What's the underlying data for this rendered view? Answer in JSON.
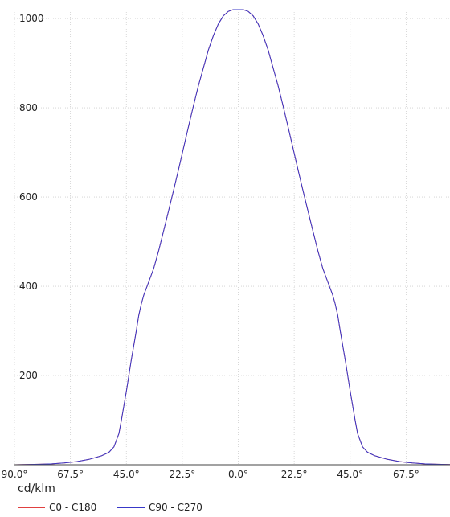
{
  "chart_data": {
    "type": "line",
    "unit_label": "cd/klm",
    "x_tick_labels": [
      "90.0°",
      "67.5°",
      "45.0°",
      "22.5°",
      "0.0°",
      "22.5°",
      "45.0°",
      "67.5°"
    ],
    "y_ticks": [
      200,
      400,
      600,
      800,
      1000
    ],
    "ylim": [
      0,
      1020
    ],
    "xlim": [
      -90,
      90
    ],
    "grid": true,
    "legend_position": "bottom-left",
    "colors": {
      "c0": "#e04040",
      "c90": "#3838c8"
    },
    "series": [
      {
        "name": "C0 - C180",
        "color": "#e04040",
        "x": [
          -90,
          -80,
          -75,
          -70,
          -65,
          -60,
          -55,
          -52,
          -50,
          -48,
          -47,
          -45,
          -43,
          -41,
          -40,
          -39,
          -38,
          -36,
          -34,
          -32,
          -30,
          -28,
          -26,
          -24,
          -22,
          -20,
          -18,
          -16,
          -14,
          -12,
          -10,
          -8,
          -6,
          -4,
          -2,
          0,
          2,
          4,
          6,
          8,
          10,
          12,
          14,
          16,
          18,
          20,
          22,
          24,
          26,
          28,
          30,
          32,
          34,
          36,
          38,
          39,
          40,
          41,
          43,
          45,
          47,
          48,
          50,
          52,
          55,
          60,
          65,
          70,
          75,
          80,
          90
        ],
        "y": [
          0,
          1,
          2,
          4,
          7,
          12,
          20,
          28,
          40,
          70,
          100,
          165,
          235,
          300,
          335,
          360,
          380,
          410,
          440,
          480,
          525,
          570,
          615,
          662,
          710,
          758,
          805,
          850,
          890,
          930,
          962,
          988,
          1006,
          1016,
          1020,
          1020,
          1020,
          1016,
          1006,
          988,
          962,
          930,
          890,
          850,
          805,
          758,
          710,
          662,
          615,
          570,
          525,
          480,
          440,
          410,
          380,
          360,
          335,
          300,
          235,
          165,
          100,
          70,
          40,
          28,
          20,
          12,
          7,
          4,
          2,
          1,
          0
        ]
      },
      {
        "name": "C90 - C270",
        "color": "#3838c8",
        "x": [
          -90,
          -80,
          -75,
          -70,
          -65,
          -60,
          -55,
          -52,
          -50,
          -48,
          -47,
          -45,
          -43,
          -41,
          -40,
          -39,
          -38,
          -36,
          -34,
          -32,
          -30,
          -28,
          -26,
          -24,
          -22,
          -20,
          -18,
          -16,
          -14,
          -12,
          -10,
          -8,
          -6,
          -4,
          -2,
          0,
          2,
          4,
          6,
          8,
          10,
          12,
          14,
          16,
          18,
          20,
          22,
          24,
          26,
          28,
          30,
          32,
          34,
          36,
          38,
          39,
          40,
          41,
          43,
          45,
          47,
          48,
          50,
          52,
          55,
          60,
          65,
          70,
          75,
          80,
          90
        ],
        "y": [
          0,
          1,
          2,
          4,
          7,
          12,
          20,
          28,
          40,
          70,
          100,
          165,
          235,
          300,
          335,
          360,
          380,
          410,
          440,
          480,
          525,
          570,
          615,
          662,
          710,
          758,
          805,
          850,
          890,
          930,
          962,
          988,
          1006,
          1016,
          1020,
          1020,
          1020,
          1016,
          1006,
          988,
          962,
          930,
          890,
          850,
          805,
          758,
          710,
          662,
          615,
          570,
          525,
          480,
          440,
          410,
          380,
          360,
          335,
          300,
          235,
          165,
          100,
          70,
          40,
          28,
          20,
          12,
          7,
          4,
          2,
          1,
          0
        ]
      }
    ]
  }
}
